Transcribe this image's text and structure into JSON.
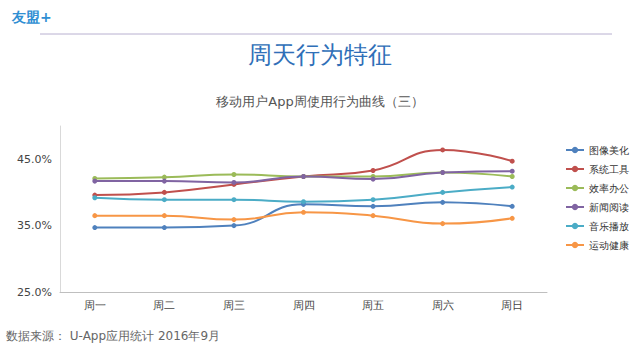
{
  "chart_data": {
    "type": "line",
    "title": "周天行为特征",
    "subtitle": "移动用户App周使用行为曲线（三）",
    "annotations": [
      "友盟+",
      "数据来源： U-App应用统计 2016年9月"
    ],
    "categories": [
      "周一",
      "周二",
      "周三",
      "周四",
      "周五",
      "周六",
      "周日"
    ],
    "series": [
      {
        "name": "图像美化",
        "color": "#4f81bd",
        "values": [
          34.7,
          34.7,
          35.0,
          38.2,
          37.9,
          38.5,
          37.9
        ]
      },
      {
        "name": "系统工具",
        "color": "#c0504d",
        "values": [
          39.6,
          40.0,
          41.2,
          42.4,
          43.3,
          46.4,
          44.7
        ]
      },
      {
        "name": "效率办公",
        "color": "#9bbb59",
        "values": [
          42.1,
          42.3,
          42.7,
          42.4,
          42.4,
          43.0,
          42.4
        ]
      },
      {
        "name": "新闻阅读",
        "color": "#8064a2",
        "values": [
          41.7,
          41.7,
          41.5,
          42.4,
          42.0,
          43.0,
          43.2
        ]
      },
      {
        "name": "音乐播放",
        "color": "#4bacc6",
        "values": [
          39.2,
          38.9,
          38.9,
          38.6,
          38.9,
          40.0,
          40.8
        ]
      },
      {
        "name": "运动健康",
        "color": "#f79646",
        "values": [
          36.5,
          36.5,
          35.9,
          37.0,
          36.5,
          35.3,
          36.1
        ]
      }
    ],
    "ylim": [
      25,
      50
    ],
    "yticks": [
      {
        "value": 25,
        "label": "25.0%"
      },
      {
        "value": 35,
        "label": "35.0%"
      },
      {
        "value": 45,
        "label": "45.0%"
      }
    ],
    "grid": false,
    "legend": "right",
    "marker": "circle",
    "line_style": "solid"
  }
}
